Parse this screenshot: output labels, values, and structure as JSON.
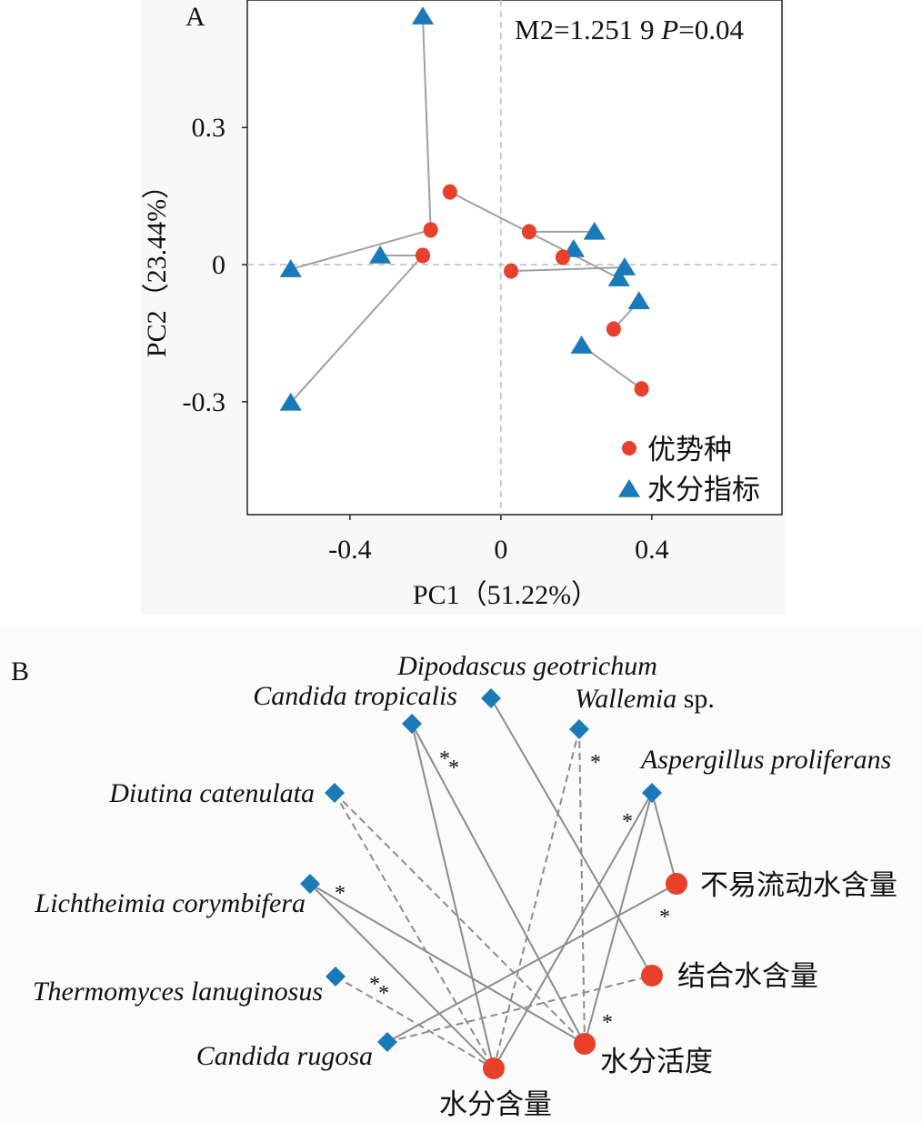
{
  "chart_data": [
    {
      "type": "scatter",
      "panel_label": "A",
      "title": "",
      "annotation": {
        "m2_label": "M2=1.251 9",
        "p_italic": "P",
        "p_value": "=0.04"
      },
      "xlabel": "PC1（51.22%）",
      "ylabel": "PC2（23.44%）",
      "xlim": [
        -0.672,
        0.745
      ],
      "ylim": [
        -0.547,
        0.579
      ],
      "xticks": [
        {
          "v": -0.4,
          "label": "-0.4"
        },
        {
          "v": 0,
          "label": "0"
        },
        {
          "v": 0.4,
          "label": "0.4"
        }
      ],
      "yticks": [
        {
          "v": 0.3,
          "label": "0.3"
        },
        {
          "v": 0,
          "label": "0"
        },
        {
          "v": -0.3,
          "label": "-0.3"
        }
      ],
      "legend": {
        "placement": "bottom-right",
        "entries": [
          {
            "name": "优势种",
            "marker": "circle",
            "color": "#e8402a"
          },
          {
            "name": "水分指标",
            "marker": "triangle",
            "color": "#1a7ab8"
          }
        ]
      },
      "pairs": [
        {
          "red": [
            -0.186,
            0.076
          ],
          "blue": [
            -0.207,
            0.543
          ]
        },
        {
          "red": [
            -0.186,
            0.076
          ],
          "blue": [
            -0.557,
            -0.01
          ]
        },
        {
          "red": [
            -0.207,
            0.02
          ],
          "blue": [
            -0.32,
            0.02
          ]
        },
        {
          "red": [
            -0.207,
            0.02
          ],
          "blue": [
            -0.557,
            -0.302
          ]
        },
        {
          "red": [
            -0.135,
            0.159
          ],
          "blue": [
            0.313,
            -0.03
          ]
        },
        {
          "red": [
            0.075,
            0.072
          ],
          "blue": [
            0.248,
            0.072
          ]
        },
        {
          "red": [
            0.164,
            0.016
          ],
          "blue": [
            0.193,
            0.034
          ]
        },
        {
          "red": [
            0.027,
            -0.014
          ],
          "blue": [
            0.328,
            -0.006
          ]
        },
        {
          "red": [
            0.299,
            -0.141
          ],
          "blue": [
            0.366,
            -0.08
          ]
        },
        {
          "red": [
            0.373,
            -0.272
          ],
          "blue": [
            0.214,
            -0.177
          ]
        }
      ],
      "grid": false
    },
    {
      "type": "network",
      "panel_label": "B",
      "species_nodes": [
        {
          "id": "ct",
          "label": "Candida tropicalis",
          "suffix": ""
        },
        {
          "id": "dg",
          "label": "Dipodascus geotrichum",
          "suffix": ""
        },
        {
          "id": "wa",
          "label": "Wallemia",
          "suffix": " sp."
        },
        {
          "id": "ap",
          "label": "Aspergillus proliferans",
          "suffix": ""
        },
        {
          "id": "dc",
          "label": "Diutina catenulata",
          "suffix": ""
        },
        {
          "id": "lc",
          "label": "Lichtheimia corymbifera",
          "suffix": ""
        },
        {
          "id": "tl",
          "label": "Thermomyces lanuginosus",
          "suffix": ""
        },
        {
          "id": "cr",
          "label": "Candida rugosa",
          "suffix": ""
        }
      ],
      "indicator_nodes": [
        {
          "id": "imw",
          "label": "不易流动水含量"
        },
        {
          "id": "bw",
          "label": "结合水含量"
        },
        {
          "id": "aw",
          "label": "水分活度"
        },
        {
          "id": "mc",
          "label": "水分含量"
        }
      ],
      "edges": [
        {
          "from": "ct",
          "to": "mc",
          "style": "solid",
          "sig": ""
        },
        {
          "from": "ct",
          "to": "aw",
          "style": "solid",
          "sig": "**"
        },
        {
          "from": "dg",
          "to": "bw",
          "style": "solid",
          "sig": ""
        },
        {
          "from": "wa",
          "to": "mc",
          "style": "dashed",
          "sig": ""
        },
        {
          "from": "wa",
          "to": "aw",
          "style": "dashed",
          "sig": "*"
        },
        {
          "from": "ap",
          "to": "mc",
          "style": "solid",
          "sig": "*"
        },
        {
          "from": "ap",
          "to": "aw",
          "style": "solid",
          "sig": "*"
        },
        {
          "from": "ap",
          "to": "imw",
          "style": "solid",
          "sig": ""
        },
        {
          "from": "dc",
          "to": "mc",
          "style": "dashed",
          "sig": ""
        },
        {
          "from": "dc",
          "to": "aw",
          "style": "dashed",
          "sig": ""
        },
        {
          "from": "lc",
          "to": "mc",
          "style": "solid",
          "sig": ""
        },
        {
          "from": "lc",
          "to": "aw",
          "style": "solid",
          "sig": "*"
        },
        {
          "from": "tl",
          "to": "mc",
          "style": "dashed",
          "sig": "**"
        },
        {
          "from": "cr",
          "to": "imw",
          "style": "solid",
          "sig": "*"
        },
        {
          "from": "cr",
          "to": "bw",
          "style": "dashed",
          "sig": ""
        }
      ],
      "colors": {
        "species": "#1a7ab8",
        "indicator": "#e8402a",
        "edge": "#8c8c8c"
      }
    }
  ]
}
